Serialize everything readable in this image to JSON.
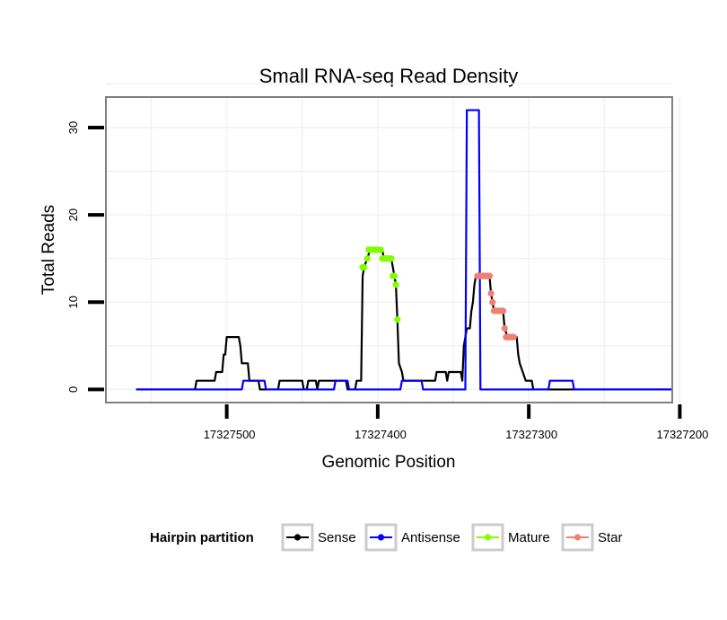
{
  "chart_data": {
    "type": "line",
    "title": "Small RNA-seq Read Density",
    "xlabel": "Genomic Position",
    "ylabel": "Total Reads",
    "x_reversed": true,
    "xlim": [
      17327580,
      17327205
    ],
    "ylim": [
      -1.5,
      33.5
    ],
    "xticks": [
      17327500,
      17327400,
      17327300,
      17327200
    ],
    "xtick_labels": [
      "17327500",
      "17327400",
      "17327300",
      "17327200"
    ],
    "yticks": [
      0,
      10,
      20,
      30
    ],
    "ytick_labels": [
      "0",
      "10",
      "20",
      "30"
    ],
    "grid": true,
    "legend": {
      "title": "Hairpin partition",
      "placement": "bottom",
      "entries": [
        "Sense",
        "Antisense",
        "Mature",
        "Star"
      ]
    },
    "series": [
      {
        "name": "Sense",
        "color": "#000000",
        "style": "line",
        "points": [
          [
            17327560,
            0
          ],
          [
            17327521,
            0
          ],
          [
            17327520,
            1
          ],
          [
            17327508,
            1
          ],
          [
            17327507,
            2
          ],
          [
            17327503,
            2
          ],
          [
            17327502,
            4
          ],
          [
            17327501,
            4
          ],
          [
            17327500,
            6
          ],
          [
            17327492,
            6
          ],
          [
            17327491,
            5
          ],
          [
            17327490,
            3
          ],
          [
            17327486,
            3
          ],
          [
            17327485,
            1
          ],
          [
            17327479,
            1
          ],
          [
            17327478,
            0
          ],
          [
            17327466,
            0
          ],
          [
            17327465,
            1
          ],
          [
            17327450,
            1
          ],
          [
            17327449,
            0
          ],
          [
            17327447,
            0
          ],
          [
            17327446,
            1
          ],
          [
            17327441,
            1
          ],
          [
            17327440,
            0
          ],
          [
            17327439,
            1
          ],
          [
            17327421,
            1
          ],
          [
            17327420,
            0
          ],
          [
            17327415,
            0
          ],
          [
            17327414,
            1
          ],
          [
            17327411,
            1
          ],
          [
            17327410,
            13
          ],
          [
            17327409,
            14
          ],
          [
            17327407,
            15
          ],
          [
            17327405,
            16
          ],
          [
            17327397,
            16
          ],
          [
            17327396,
            15
          ],
          [
            17327393,
            15
          ],
          [
            17327391,
            15
          ],
          [
            17327390,
            14
          ],
          [
            17327389,
            13
          ],
          [
            17327388,
            12
          ],
          [
            17327387,
            8
          ],
          [
            17327386,
            3
          ],
          [
            17327384,
            2
          ],
          [
            17327383,
            1
          ],
          [
            17327362,
            1
          ],
          [
            17327361,
            2
          ],
          [
            17327355,
            2
          ],
          [
            17327354,
            1
          ],
          [
            17327353,
            2
          ],
          [
            17327345,
            2
          ],
          [
            17327344,
            1
          ],
          [
            17327343,
            5
          ],
          [
            17327341,
            7
          ],
          [
            17327339,
            7
          ],
          [
            17327338,
            9
          ],
          [
            17327337,
            10
          ],
          [
            17327336,
            12
          ],
          [
            17327335,
            13
          ],
          [
            17327326,
            13
          ],
          [
            17327325,
            11
          ],
          [
            17327324,
            10
          ],
          [
            17327323,
            9
          ],
          [
            17327317,
            9
          ],
          [
            17327316,
            7
          ],
          [
            17327314,
            6
          ],
          [
            17327308,
            6
          ],
          [
            17327307,
            4
          ],
          [
            17327306,
            3
          ],
          [
            17327304,
            2
          ],
          [
            17327302,
            1
          ],
          [
            17327298,
            1
          ],
          [
            17327297,
            0
          ],
          [
            17327205,
            0
          ]
        ]
      },
      {
        "name": "Antisense",
        "color": "#0000ff",
        "style": "line",
        "points": [
          [
            17327560,
            0
          ],
          [
            17327490,
            0
          ],
          [
            17327489,
            1
          ],
          [
            17327475,
            1
          ],
          [
            17327474,
            0
          ],
          [
            17327429,
            0
          ],
          [
            17327428,
            1
          ],
          [
            17327420,
            1
          ],
          [
            17327419,
            0
          ],
          [
            17327385,
            0
          ],
          [
            17327384,
            1
          ],
          [
            17327371,
            1
          ],
          [
            17327370,
            0
          ],
          [
            17327342,
            0
          ],
          [
            17327341,
            32
          ],
          [
            17327333,
            32
          ],
          [
            17327332,
            0
          ],
          [
            17327287,
            0
          ],
          [
            17327286,
            1
          ],
          [
            17327271,
            1
          ],
          [
            17327270,
            0
          ],
          [
            17327205,
            0
          ]
        ]
      },
      {
        "name": "Mature",
        "color": "#7fff00",
        "style": "points",
        "points": [
          [
            17327410,
            14
          ],
          [
            17327409,
            14
          ],
          [
            17327407,
            15
          ],
          [
            17327406,
            16
          ],
          [
            17327405,
            16
          ],
          [
            17327404,
            16
          ],
          [
            17327403,
            16
          ],
          [
            17327402,
            16
          ],
          [
            17327401,
            16
          ],
          [
            17327400,
            16
          ],
          [
            17327399,
            16
          ],
          [
            17327398,
            16
          ],
          [
            17327397,
            15
          ],
          [
            17327396,
            15
          ],
          [
            17327395,
            15
          ],
          [
            17327394,
            15
          ],
          [
            17327393,
            15
          ],
          [
            17327392,
            15
          ],
          [
            17327391,
            15
          ],
          [
            17327390,
            13
          ],
          [
            17327389,
            13
          ],
          [
            17327388,
            12
          ],
          [
            17327387,
            8
          ]
        ]
      },
      {
        "name": "Star",
        "color": "#f08070",
        "style": "points",
        "points": [
          [
            17327334,
            13
          ],
          [
            17327333,
            13
          ],
          [
            17327332,
            13
          ],
          [
            17327331,
            13
          ],
          [
            17327330,
            13
          ],
          [
            17327329,
            13
          ],
          [
            17327328,
            13
          ],
          [
            17327327,
            13
          ],
          [
            17327326,
            13
          ],
          [
            17327325,
            11
          ],
          [
            17327324,
            10
          ],
          [
            17327323,
            9
          ],
          [
            17327322,
            9
          ],
          [
            17327321,
            9
          ],
          [
            17327320,
            9
          ],
          [
            17327319,
            9
          ],
          [
            17327318,
            9
          ],
          [
            17327317,
            9
          ],
          [
            17327316,
            7
          ],
          [
            17327315,
            6
          ],
          [
            17327314,
            6
          ],
          [
            17327313,
            6
          ],
          [
            17327312,
            6
          ],
          [
            17327311,
            6
          ],
          [
            17327310,
            6
          ]
        ]
      }
    ]
  }
}
